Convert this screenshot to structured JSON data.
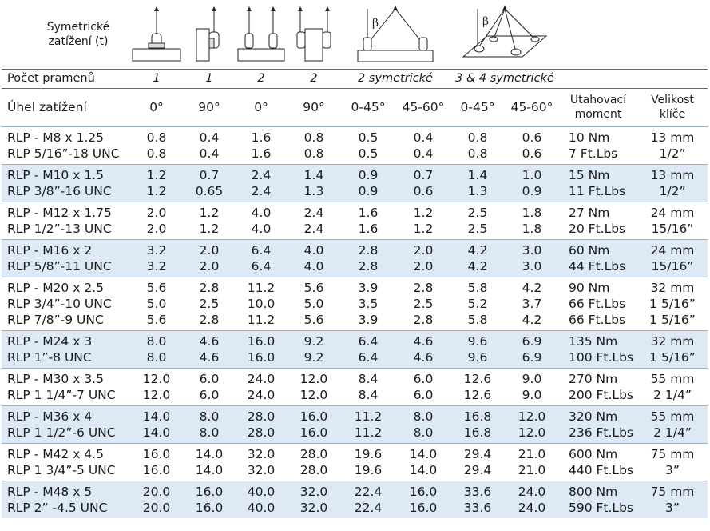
{
  "header": {
    "sym_label_line1": "Symetrické",
    "sym_label_line2": "zatížení (t)",
    "legs_label": "Počet pramenů",
    "legs": [
      "1",
      "1",
      "2",
      "2"
    ],
    "legs_sym2": "2 symetrické",
    "legs_sym34": "3 & 4 symetrické",
    "angle_label": "Úhel zatížení",
    "angles": [
      "0°",
      "90°",
      "0°",
      "90°",
      "0-45°",
      "45-60°",
      "0-45°",
      "45-60°"
    ],
    "torque_label_1": "Utahovací",
    "torque_label_2": "moment",
    "wrench_label_1": "Velikost",
    "wrench_label_2": "klíče",
    "beta": "β"
  },
  "rows": [
    {
      "items": [
        [
          "RLP - M8 x 1.25",
          "0.8",
          "0.4",
          "1.6",
          "0.8",
          "0.5",
          "0.4",
          "0.8",
          "0.6",
          "10 Nm",
          "13 mm"
        ],
        [
          "RLP 5/16”-18 UNC",
          "0.8",
          "0.4",
          "1.6",
          "0.8",
          "0.5",
          "0.4",
          "0.8",
          "0.6",
          "7 Ft.Lbs",
          "1/2”"
        ]
      ]
    },
    {
      "items": [
        [
          "RLP - M10 x 1.5",
          "1.2",
          "0.7",
          "2.4",
          "1.4",
          "0.9",
          "0.7",
          "1.4",
          "1.0",
          "15 Nm",
          "13 mm"
        ],
        [
          "RLP 3/8”-16 UNC",
          "1.2",
          "0.65",
          "2.4",
          "1.3",
          "0.9",
          "0.6",
          "1.3",
          "0.9",
          "11 Ft.Lbs",
          "1/2”"
        ]
      ]
    },
    {
      "items": [
        [
          "RLP - M12 x 1.75",
          "2.0",
          "1.2",
          "4.0",
          "2.4",
          "1.6",
          "1.2",
          "2.5",
          "1.8",
          "27 Nm",
          "24 mm"
        ],
        [
          "RLP 1/2”-13 UNC",
          "2.0",
          "1.2",
          "4.0",
          "2.4",
          "1.6",
          "1.2",
          "2.5",
          "1.8",
          "20 Ft.Lbs",
          "15/16”"
        ]
      ]
    },
    {
      "items": [
        [
          "RLP - M16 x 2",
          "3.2",
          "2.0",
          "6.4",
          "4.0",
          "2.8",
          "2.0",
          "4.2",
          "3.0",
          "60 Nm",
          "24 mm"
        ],
        [
          "RLP 5/8”-11 UNC",
          "3.2",
          "2.0",
          "6.4",
          "4.0",
          "2.8",
          "2.0",
          "4.2",
          "3.0",
          "44 Ft.Lbs",
          "15/16”"
        ]
      ]
    },
    {
      "items": [
        [
          "RLP - M20 x 2.5",
          "5.6",
          "2.8",
          "11.2",
          "5.6",
          "3.9",
          "2.8",
          "5.8",
          "4.2",
          "90 Nm",
          "32 mm"
        ],
        [
          "RLP 3/4”-10 UNC",
          "5.0",
          "2.5",
          "10.0",
          "5.0",
          "3.5",
          "2.5",
          "5.2",
          "3.7",
          "66 Ft.Lbs",
          "1 5/16”"
        ],
        [
          "RLP 7/8”-9 UNC",
          "5.6",
          "2.8",
          "11.2",
          "5.6",
          "3.9",
          "2.8",
          "5.8",
          "4.2",
          "66 Ft.Lbs",
          "1 5/16”"
        ]
      ]
    },
    {
      "items": [
        [
          "RLP - M24 x 3",
          "8.0",
          "4.6",
          "16.0",
          "9.2",
          "6.4",
          "4.6",
          "9.6",
          "6.9",
          "135 Nm",
          "32 mm"
        ],
        [
          "RLP 1”-8 UNC",
          "8.0",
          "4.6",
          "16.0",
          "9.2",
          "6.4",
          "4.6",
          "9.6",
          "6.9",
          "100 Ft.Lbs",
          "1 5/16”"
        ]
      ]
    },
    {
      "items": [
        [
          "RLP - M30 x 3.5",
          "12.0",
          "6.0",
          "24.0",
          "12.0",
          "8.4",
          "6.0",
          "12.6",
          "9.0",
          "270 Nm",
          "55 mm"
        ],
        [
          "RLP 1 1/4”-7 UNC",
          "12.0",
          "6.0",
          "24.0",
          "12.0",
          "8.4",
          "6.0",
          "12.6",
          "9.0",
          "200 Ft.Lbs",
          "2  1/4”"
        ]
      ]
    },
    {
      "items": [
        [
          "RLP - M36 x 4",
          "14.0",
          "8.0",
          "28.0",
          "16.0",
          "11.2",
          "8.0",
          "16.8",
          "12.0",
          "320 Nm",
          "55 mm"
        ],
        [
          "RLP 1 1/2”-6 UNC",
          "14.0",
          "8.0",
          "28.0",
          "16.0",
          "11.2",
          "8.0",
          "16.8",
          "12.0",
          "236 Ft.Lbs",
          "2 1/4”"
        ]
      ]
    },
    {
      "items": [
        [
          "RLP - M42 x 4.5",
          "16.0",
          "14.0",
          "32.0",
          "28.0",
          "19.6",
          "14.0",
          "29.4",
          "21.0",
          "600 Nm",
          "75 mm"
        ],
        [
          "RLP 1 3/4”-5 UNC",
          "16.0",
          "14.0",
          "32.0",
          "28.0",
          "19.6",
          "14.0",
          "29.4",
          "21.0",
          "440 Ft.Lbs",
          "3”"
        ]
      ]
    },
    {
      "items": [
        [
          "RLP - M48 x 5",
          "20.0",
          "16.0",
          "40.0",
          "32.0",
          "22.4",
          "16.0",
          "33.6",
          "24.0",
          "800 Nm",
          "75 mm"
        ],
        [
          "RLP 2” -4.5 UNC",
          "20.0",
          "16.0",
          "40.0",
          "32.0",
          "22.4",
          "16.0",
          "33.6",
          "24.0",
          "590 Ft.Lbs",
          "3”"
        ]
      ]
    }
  ],
  "colors": {
    "band": "#dde9f5",
    "text": "#1a1a1a"
  }
}
